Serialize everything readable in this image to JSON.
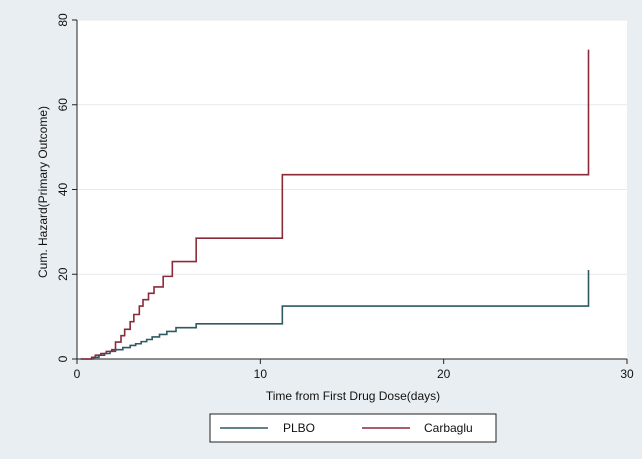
{
  "chart_data": {
    "type": "line",
    "step": true,
    "title": "",
    "xlabel": "Time from First Drug Dose(days)",
    "ylabel": "Cum. Hazard(Primary Outcome)",
    "xlim": [
      0,
      30
    ],
    "ylim": [
      0,
      80
    ],
    "xticks": [
      0,
      10,
      20,
      30
    ],
    "yticks": [
      0,
      20,
      40,
      60,
      80
    ],
    "grid": true,
    "legend_position": "bottom",
    "colors": {
      "PLBO": "#2d5a64",
      "Carbaglu": "#8a2b3a",
      "background": "#e8eef2",
      "plot_area": "#ffffff",
      "grid": "#e6eaed"
    },
    "series": [
      {
        "name": "PLBO",
        "x": [
          0.2,
          0.9,
          1.2,
          1.5,
          1.8,
          2.1,
          2.5,
          2.9,
          3.2,
          3.5,
          3.8,
          4.1,
          4.5,
          4.9,
          5.4,
          6.5,
          11.2,
          27.9,
          27.9
        ],
        "y": [
          0,
          0.4,
          0.9,
          1.3,
          1.8,
          2.2,
          2.7,
          3.2,
          3.6,
          4.1,
          4.6,
          5.2,
          5.8,
          6.5,
          7.4,
          8.3,
          12.5,
          12.5,
          21.0
        ]
      },
      {
        "name": "Carbaglu",
        "x": [
          0.2,
          0.8,
          1.0,
          1.3,
          1.6,
          1.9,
          2.1,
          2.4,
          2.6,
          2.9,
          3.1,
          3.4,
          3.6,
          3.9,
          4.2,
          4.5,
          4.7,
          5.0,
          5.2,
          5.6,
          6.5,
          11.2,
          27.9,
          27.9
        ],
        "y": [
          0,
          0.4,
          0.9,
          1.3,
          1.8,
          2.2,
          4.0,
          5.5,
          7.0,
          8.8,
          10.5,
          12.5,
          14.0,
          15.5,
          17.0,
          17.0,
          19.5,
          19.5,
          23.0,
          23.0,
          28.5,
          43.5,
          43.5,
          73.0
        ]
      }
    ]
  }
}
